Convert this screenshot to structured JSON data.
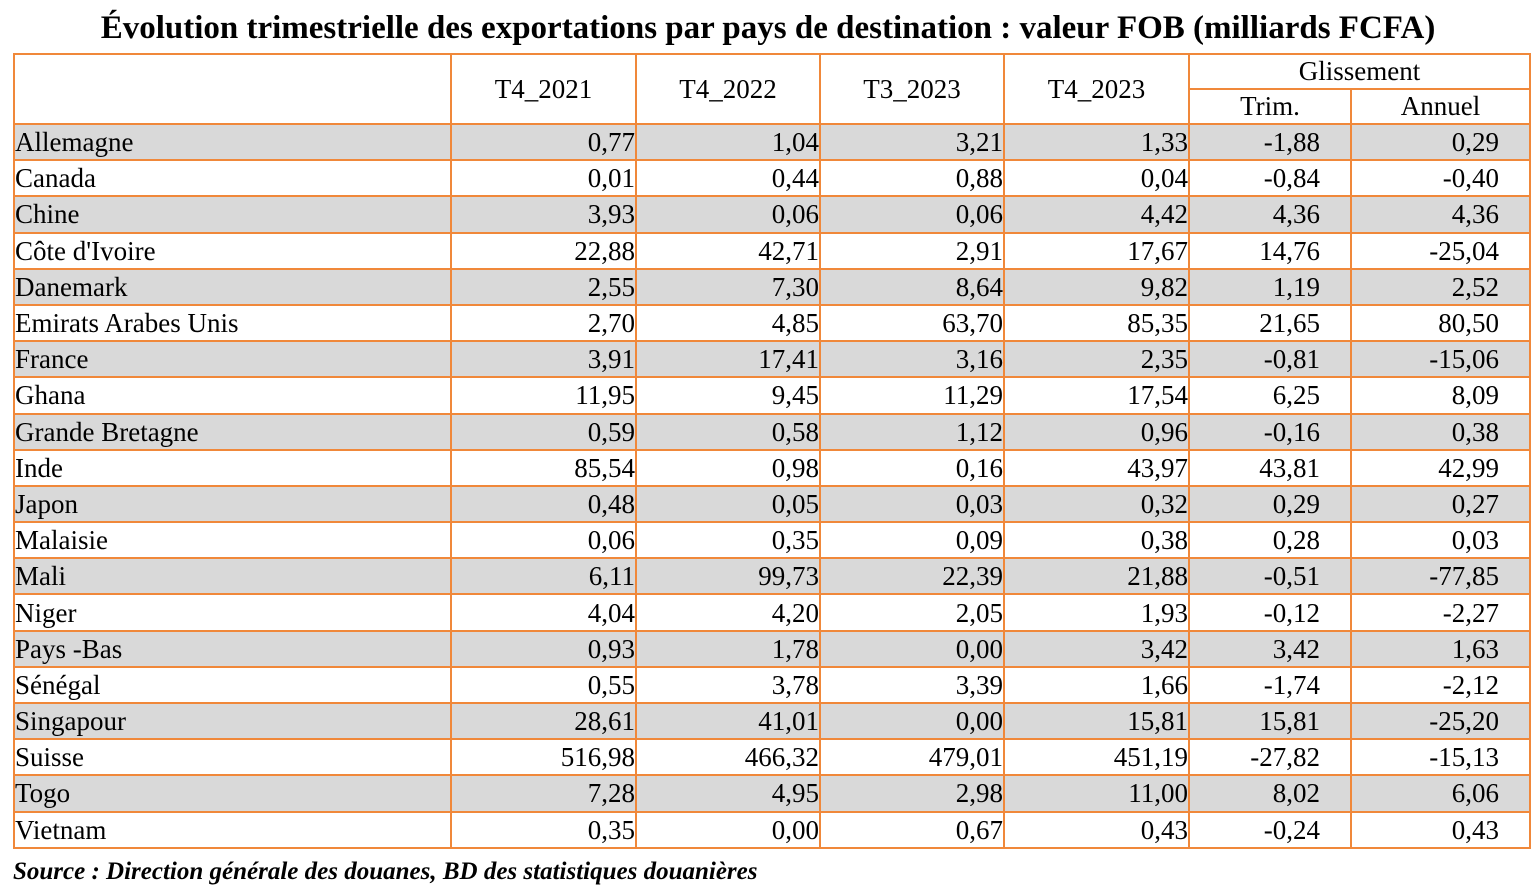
{
  "title": "Évolution trimestrielle des exportations par pays de destination : valeur FOB (milliards FCFA)",
  "columns": {
    "c1": "T4_2021",
    "c2": "T4_2022",
    "c3": "T3_2023",
    "c4": "T4_2023",
    "group": "Glissement",
    "trim": "Trim.",
    "annuel": "Annuel"
  },
  "rows": [
    {
      "country": "Allemagne",
      "t4_2021": "0,77",
      "t4_2022": "1,04",
      "t3_2023": "3,21",
      "t4_2023": "1,33",
      "trim": "-1,88",
      "annuel": "0,29"
    },
    {
      "country": "Canada",
      "t4_2021": "0,01",
      "t4_2022": "0,44",
      "t3_2023": "0,88",
      "t4_2023": "0,04",
      "trim": "-0,84",
      "annuel": "-0,40"
    },
    {
      "country": "Chine",
      "t4_2021": "3,93",
      "t4_2022": "0,06",
      "t3_2023": "0,06",
      "t4_2023": "4,42",
      "trim": "4,36",
      "annuel": "4,36"
    },
    {
      "country": "Côte d'Ivoire",
      "t4_2021": "22,88",
      "t4_2022": "42,71",
      "t3_2023": "2,91",
      "t4_2023": "17,67",
      "trim": "14,76",
      "annuel": "-25,04"
    },
    {
      "country": "Danemark",
      "t4_2021": "2,55",
      "t4_2022": "7,30",
      "t3_2023": "8,64",
      "t4_2023": "9,82",
      "trim": "1,19",
      "annuel": "2,52"
    },
    {
      "country": "Emirats Arabes Unis",
      "t4_2021": "2,70",
      "t4_2022": "4,85",
      "t3_2023": "63,70",
      "t4_2023": "85,35",
      "trim": "21,65",
      "annuel": "80,50"
    },
    {
      "country": "France",
      "t4_2021": "3,91",
      "t4_2022": "17,41",
      "t3_2023": "3,16",
      "t4_2023": "2,35",
      "trim": "-0,81",
      "annuel": "-15,06"
    },
    {
      "country": "Ghana",
      "t4_2021": "11,95",
      "t4_2022": "9,45",
      "t3_2023": "11,29",
      "t4_2023": "17,54",
      "trim": "6,25",
      "annuel": "8,09"
    },
    {
      "country": "Grande Bretagne",
      "t4_2021": "0,59",
      "t4_2022": "0,58",
      "t3_2023": "1,12",
      "t4_2023": "0,96",
      "trim": "-0,16",
      "annuel": "0,38"
    },
    {
      "country": "Inde",
      "t4_2021": "85,54",
      "t4_2022": "0,98",
      "t3_2023": "0,16",
      "t4_2023": "43,97",
      "trim": "43,81",
      "annuel": "42,99"
    },
    {
      "country": "Japon",
      "t4_2021": "0,48",
      "t4_2022": "0,05",
      "t3_2023": "0,03",
      "t4_2023": "0,32",
      "trim": "0,29",
      "annuel": "0,27"
    },
    {
      "country": "Malaisie",
      "t4_2021": "0,06",
      "t4_2022": "0,35",
      "t3_2023": "0,09",
      "t4_2023": "0,38",
      "trim": "0,28",
      "annuel": "0,03"
    },
    {
      "country": "Mali",
      "t4_2021": "6,11",
      "t4_2022": "99,73",
      "t3_2023": "22,39",
      "t4_2023": "21,88",
      "trim": "-0,51",
      "annuel": "-77,85"
    },
    {
      "country": "Niger",
      "t4_2021": "4,04",
      "t4_2022": "4,20",
      "t3_2023": "2,05",
      "t4_2023": "1,93",
      "trim": "-0,12",
      "annuel": "-2,27"
    },
    {
      "country": "Pays -Bas",
      "t4_2021": "0,93",
      "t4_2022": "1,78",
      "t3_2023": "0,00",
      "t4_2023": "3,42",
      "trim": "3,42",
      "annuel": "1,63"
    },
    {
      "country": "Sénégal",
      "t4_2021": "0,55",
      "t4_2022": "3,78",
      "t3_2023": "3,39",
      "t4_2023": "1,66",
      "trim": "-1,74",
      "annuel": "-2,12"
    },
    {
      "country": "Singapour",
      "t4_2021": "28,61",
      "t4_2022": "41,01",
      "t3_2023": "0,00",
      "t4_2023": "15,81",
      "trim": "15,81",
      "annuel": "-25,20"
    },
    {
      "country": "Suisse",
      "t4_2021": "516,98",
      "t4_2022": "466,32",
      "t3_2023": "479,01",
      "t4_2023": "451,19",
      "trim": "-27,82",
      "annuel": "-15,13"
    },
    {
      "country": "Togo",
      "t4_2021": "7,28",
      "t4_2022": "4,95",
      "t3_2023": "2,98",
      "t4_2023": "11,00",
      "trim": "8,02",
      "annuel": "6,06"
    },
    {
      "country": "Vietnam",
      "t4_2021": "0,35",
      "t4_2022": "0,00",
      "t3_2023": "0,67",
      "t4_2023": "0,43",
      "trim": "-0,24",
      "annuel": "0,43"
    }
  ],
  "source": "Source : Direction générale des douanes, BD des statistiques douanières",
  "colors": {
    "border": "#f0883a",
    "stripe": "#d9d9d9"
  }
}
